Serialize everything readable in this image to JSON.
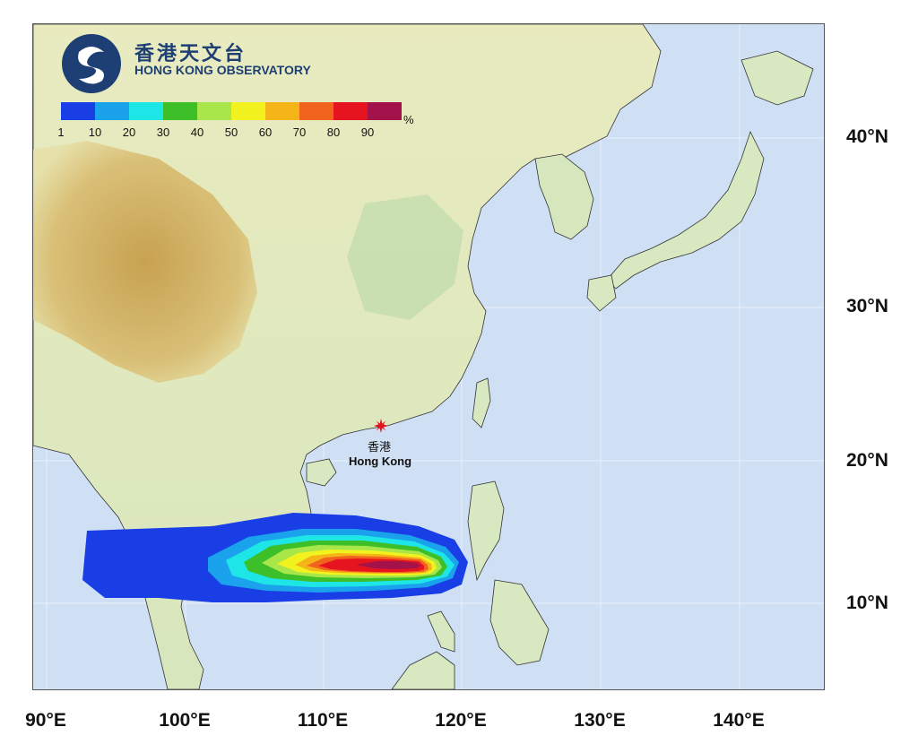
{
  "logo": {
    "name_zh": "香港天文台",
    "name_en": "HONG KONG OBSERVATORY"
  },
  "legend": {
    "ticks": [
      "1",
      "10",
      "20",
      "30",
      "40",
      "50",
      "60",
      "70",
      "80",
      "90"
    ],
    "unit": "%",
    "colors": [
      "#1a3ee6",
      "#1aa3ec",
      "#1fe6e6",
      "#3cbf28",
      "#a8e64a",
      "#f2f21e",
      "#f5b418",
      "#f0641e",
      "#e6141e",
      "#a3124a"
    ]
  },
  "place": {
    "name_zh": "香港",
    "name_en": "Hong Kong",
    "marker_color": "#e0141e"
  },
  "axes": {
    "lat_labels": [
      "40°N",
      "30°N",
      "20°N",
      "10°N"
    ],
    "lon_labels": [
      "90°E",
      "100°E",
      "110°E",
      "120°E",
      "130°E",
      "140°E"
    ]
  },
  "map_colors": {
    "sea": "#cfe0f5",
    "land_low": "#c8e0b6",
    "land_mid": "#e6e8b8",
    "land_high": "#c9a24e"
  }
}
